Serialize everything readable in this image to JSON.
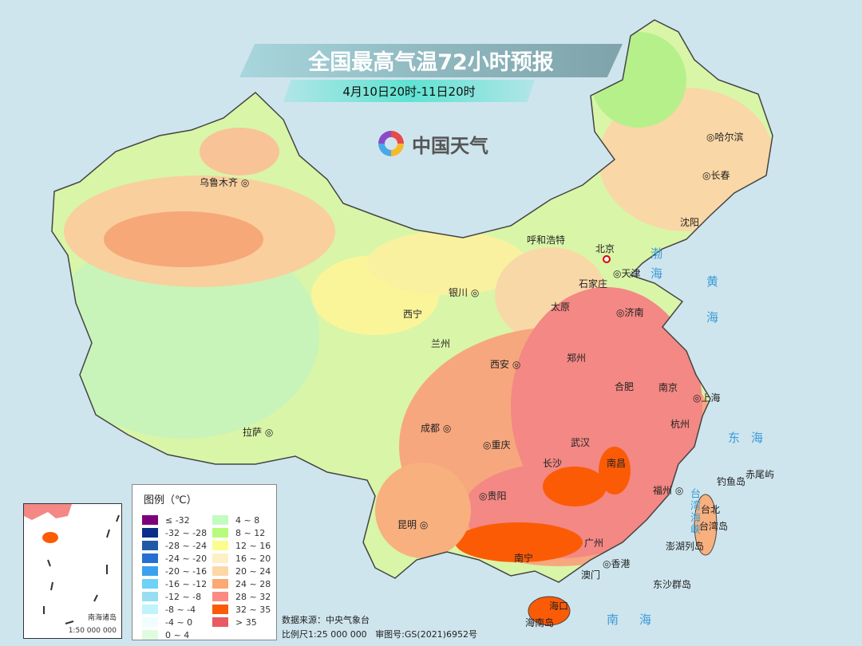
{
  "title": "全国最高气温72小时预报",
  "subtitle": "4月10日20时-11日20时",
  "logo": {
    "name": "中国天气",
    "icon": "china-weather-swirl-logo"
  },
  "legend": {
    "title": "图例（℃）",
    "items": [
      {
        "label": "≤ -32",
        "color": "#7b007b"
      },
      {
        "label": "-32 ~ -28",
        "color": "#0a2e8a"
      },
      {
        "label": "-28 ~ -24",
        "color": "#1f5aa8"
      },
      {
        "label": "-24 ~ -20",
        "color": "#2470d2"
      },
      {
        "label": "-20 ~ -16",
        "color": "#3ba1ee"
      },
      {
        "label": "-16 ~ -12",
        "color": "#6ed1f6"
      },
      {
        "label": "-12 ~ -8",
        "color": "#98def2"
      },
      {
        "label": "-8 ~ -4",
        "color": "#c0f4fc"
      },
      {
        "label": "-4 ~ 0",
        "color": "#f0fdfe"
      },
      {
        "label": "0 ~ 4",
        "color": "#e0fbe0"
      },
      {
        "label": "4 ~ 8",
        "color": "#c3fcc0"
      },
      {
        "label": "8 ~ 12",
        "color": "#b6fc7a"
      },
      {
        "label": "12 ~ 16",
        "color": "#fbfc8e"
      },
      {
        "label": "16 ~ 20",
        "color": "#fdf0c6"
      },
      {
        "label": "20 ~ 24",
        "color": "#fcd8a6"
      },
      {
        "label": "24 ~ 28",
        "color": "#fca872"
      },
      {
        "label": "28 ~ 32",
        "color": "#fb8a84"
      },
      {
        "label": "32 ~ 35",
        "color": "#fc5b06"
      },
      {
        "label": "> 35",
        "color": "#ea5a62"
      }
    ]
  },
  "cities": [
    {
      "name": "乌鲁木齐"
    },
    {
      "name": "呼和浩特"
    },
    {
      "name": "哈尔滨"
    },
    {
      "name": "长春"
    },
    {
      "name": "沈阳"
    },
    {
      "name": "北京"
    },
    {
      "name": "天津"
    },
    {
      "name": "石家庄"
    },
    {
      "name": "太原"
    },
    {
      "name": "济南"
    },
    {
      "name": "银川"
    },
    {
      "name": "西宁"
    },
    {
      "name": "兰州"
    },
    {
      "name": "西安"
    },
    {
      "name": "郑州"
    },
    {
      "name": "合肥"
    },
    {
      "name": "南京"
    },
    {
      "name": "上海"
    },
    {
      "name": "杭州"
    },
    {
      "name": "武汉"
    },
    {
      "name": "成都"
    },
    {
      "name": "重庆"
    },
    {
      "name": "长沙"
    },
    {
      "name": "南昌"
    },
    {
      "name": "福州"
    },
    {
      "name": "贵阳"
    },
    {
      "name": "昆明"
    },
    {
      "name": "南宁"
    },
    {
      "name": "广州"
    },
    {
      "name": "香港"
    },
    {
      "name": "澳门"
    },
    {
      "name": "海口"
    },
    {
      "name": "拉萨"
    },
    {
      "name": "台北"
    }
  ],
  "islands": {
    "hainan": "海南岛",
    "taiwan": "台湾岛",
    "penghu": "澎湖列岛",
    "diaoyu": "钓鱼岛",
    "chiwei": "赤尾屿",
    "dongsha": "东沙群岛"
  },
  "seas": {
    "bohai": "渤海",
    "huanghai": "黄海",
    "donghai": "东海",
    "taiwan_strait": "台湾海峡",
    "nanhai": "南海"
  },
  "inset": {
    "name": "南海诸岛",
    "scale": "1:50 000 000"
  },
  "footer": {
    "source": "数据来源：中央气象台",
    "scale": "比例尺1:25 000 000",
    "approval": "审图号:GS(2021)6952号"
  }
}
